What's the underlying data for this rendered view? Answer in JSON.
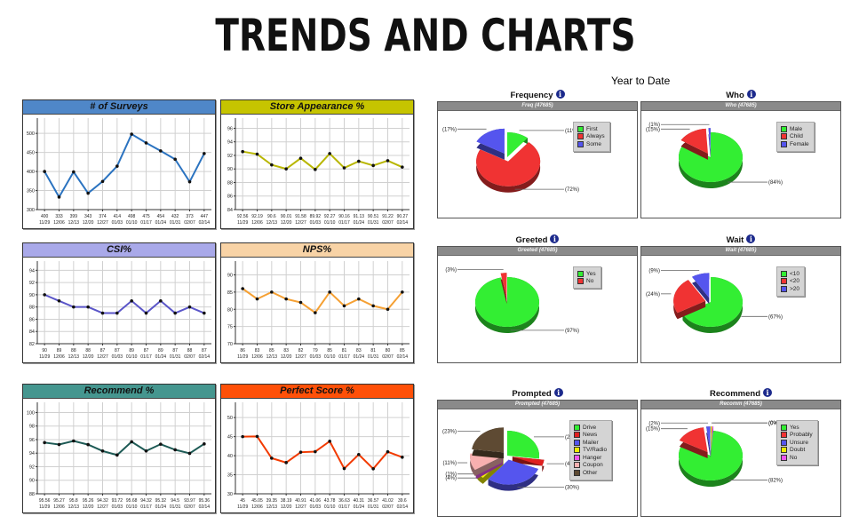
{
  "page": {
    "title": "TRENDS AND CHARTS",
    "ytd_label": "Year to Date"
  },
  "line_charts": [
    {
      "id": "surveys",
      "title": "# of Surveys",
      "header_color": "#4f87c8",
      "line_color": "#2b73c0",
      "yticks": [
        "300",
        "350",
        "400",
        "450",
        "500"
      ],
      "ymin": 300,
      "ymax": 540,
      "values": [
        400,
        333,
        399,
        343,
        374,
        414,
        498,
        475,
        454,
        432,
        373,
        447
      ],
      "value_labels": [
        "400",
        "333",
        "399",
        "343",
        "374",
        "414",
        "498",
        "475",
        "454",
        "432",
        "373",
        "447"
      ],
      "dates": [
        "11/29",
        "12/06",
        "12/13",
        "12/20",
        "12/27",
        "01/03",
        "01/10",
        "01/17",
        "01/24",
        "01/31",
        "02/07",
        "02/14"
      ]
    },
    {
      "id": "store",
      "title": "Store Appearance %",
      "header_color": "#c6c400",
      "line_color": "#b8b600",
      "yticks": [
        "84",
        "86",
        "88",
        "90",
        "92",
        "94",
        "96"
      ],
      "ymin": 84,
      "ymax": 97.5,
      "values": [
        92.56,
        92.19,
        90.6,
        90.01,
        91.58,
        89.92,
        92.27,
        90.16,
        91.13,
        90.51,
        91.22,
        90.27
      ],
      "value_labels": [
        "92.56",
        "92.19",
        "90.6",
        "90.01",
        "91.58",
        "89.92",
        "92.27",
        "90.16",
        "91.13",
        "90.51",
        "91.22",
        "90.27"
      ],
      "dates": [
        "11/29",
        "12/06",
        "12/13",
        "12/20",
        "12/27",
        "01/03",
        "01/10",
        "01/17",
        "01/24",
        "01/31",
        "02/07",
        "02/14"
      ]
    },
    {
      "id": "csi",
      "title": "CSI%",
      "header_color": "#a9a9e9",
      "line_color": "#5a55c8",
      "yticks": [
        "82",
        "84",
        "86",
        "88",
        "90",
        "92",
        "94"
      ],
      "ymin": 82,
      "ymax": 95.5,
      "values": [
        90,
        89,
        88,
        88,
        87,
        87,
        89,
        87,
        89,
        87,
        88,
        87
      ],
      "value_labels": [
        "90",
        "89",
        "88",
        "88",
        "87",
        "87",
        "89",
        "87",
        "89",
        "87",
        "88",
        "87"
      ],
      "dates": [
        "11/29",
        "12/06",
        "12/13",
        "12/20",
        "12/27",
        "01/03",
        "01/10",
        "01/17",
        "01/24",
        "01/31",
        "02/07",
        "02/14"
      ]
    },
    {
      "id": "nps",
      "title": "NPS%",
      "header_color": "#f8d3a6",
      "line_color": "#f5a033",
      "yticks": [
        "70",
        "75",
        "80",
        "85",
        "90"
      ],
      "ymin": 70,
      "ymax": 94,
      "values": [
        86,
        83,
        85,
        83,
        82,
        79,
        85,
        81,
        83,
        81,
        80,
        85
      ],
      "value_labels": [
        "86",
        "83",
        "85",
        "83",
        "82",
        "79",
        "85",
        "81",
        "83",
        "81",
        "80",
        "85"
      ],
      "dates": [
        "11/29",
        "12/06",
        "12/13",
        "12/20",
        "12/27",
        "01/03",
        "01/10",
        "01/17",
        "01/24",
        "01/31",
        "02/07",
        "02/14"
      ]
    },
    {
      "id": "recommend",
      "title": "Recommend %",
      "header_color": "#45968f",
      "line_color": "#1d5a55",
      "yticks": [
        "88",
        "90",
        "92",
        "94",
        "96",
        "98",
        "100"
      ],
      "ymin": 88,
      "ymax": 101.5,
      "values": [
        95.56,
        95.27,
        95.8,
        95.26,
        94.32,
        93.72,
        95.68,
        94.32,
        95.32,
        94.5,
        93.97,
        95.36
      ],
      "value_labels": [
        "95.56",
        "95.27",
        "95.8",
        "95.26",
        "94.32",
        "93.72",
        "95.68",
        "94.32",
        "95.32",
        "94.5",
        "93.97",
        "95.36"
      ],
      "dates": [
        "11/29",
        "12/06",
        "12/13",
        "12/20",
        "12/27",
        "01/03",
        "01/10",
        "01/17",
        "01/24",
        "01/31",
        "02/07",
        "02/14"
      ]
    },
    {
      "id": "perfect",
      "title": "Perfect Score %",
      "header_color": "#ff5008",
      "line_color": "#f23a00",
      "yticks": [
        "30",
        "35",
        "40",
        "45",
        "50"
      ],
      "ymin": 30,
      "ymax": 54,
      "values": [
        45,
        45.05,
        39.35,
        38.19,
        40.91,
        41.06,
        43.78,
        36.63,
        40.31,
        36.57,
        41.02,
        39.6
      ],
      "value_labels": [
        "45",
        "45.05",
        "39.35",
        "38.19",
        "40.91",
        "41.06",
        "43.78",
        "36.63",
        "40.31",
        "36.57",
        "41.02",
        "39.6"
      ],
      "dates": [
        "11/29",
        "12/06",
        "12/13",
        "12/20",
        "12/27",
        "01/03",
        "01/10",
        "01/17",
        "01/24",
        "01/31",
        "02/07",
        "02/14"
      ]
    }
  ],
  "pie_charts": [
    {
      "id": "frequency",
      "title": "Frequency",
      "subtitle": "Freq (47685)",
      "slices": [
        {
          "label": "First",
          "pct": 11,
          "pct_label": "(11%)",
          "color": "#33ee33"
        },
        {
          "label": "Always",
          "pct": 72,
          "pct_label": "(72%)",
          "color": "#f03333"
        },
        {
          "label": "Some",
          "pct": 17,
          "pct_label": "(17%)",
          "color": "#5555ee"
        }
      ]
    },
    {
      "id": "who",
      "title": "Who",
      "subtitle": "Who (47685)",
      "slices": [
        {
          "label": "Male",
          "pct": 84,
          "pct_label": "(84%)",
          "color": "#33ee33"
        },
        {
          "label": "Child",
          "pct": 15,
          "pct_label": "(15%)",
          "color": "#f03333"
        },
        {
          "label": "Female",
          "pct": 1,
          "pct_label": "(1%)",
          "color": "#5555ee"
        }
      ]
    },
    {
      "id": "greeted",
      "title": "Greeted",
      "subtitle": "Greeted (47685)",
      "slices": [
        {
          "label": "Yes",
          "pct": 97,
          "pct_label": "(97%)",
          "color": "#33ee33"
        },
        {
          "label": "No",
          "pct": 3,
          "pct_label": "(3%)",
          "color": "#f03333"
        }
      ]
    },
    {
      "id": "wait",
      "title": "Wait",
      "subtitle": "Wait (47685)",
      "slices": [
        {
          "label": "<10",
          "pct": 67,
          "pct_label": "(67%)",
          "color": "#33ee33"
        },
        {
          "label": "<20",
          "pct": 24,
          "pct_label": "(24%)",
          "color": "#f03333"
        },
        {
          "label": ">20",
          "pct": 9,
          "pct_label": "(9%)",
          "color": "#5555ee"
        }
      ]
    },
    {
      "id": "prompted",
      "title": "Prompted",
      "subtitle": "Prompted (47685)",
      "slices": [
        {
          "label": "Drive",
          "pct": 27,
          "pct_label": "(27%)",
          "color": "#33ee33"
        },
        {
          "label": "News",
          "pct": 4,
          "pct_label": "(4%)",
          "color": "#e02020"
        },
        {
          "label": "Mailer",
          "pct": 30,
          "pct_label": "(30%)",
          "color": "#5555ee"
        },
        {
          "label": "TV/Radio",
          "pct": 4,
          "pct_label": "(4%)",
          "color": "#eeee00"
        },
        {
          "label": "Hanger",
          "pct": 1,
          "pct_label": "(1%)",
          "color": "#ee55ee"
        },
        {
          "label": "Coupon",
          "pct": 11,
          "pct_label": "(11%)",
          "color": "#f8b0b0"
        },
        {
          "label": "Other",
          "pct": 23,
          "pct_label": "(23%)",
          "color": "#5e4a33"
        }
      ]
    },
    {
      "id": "recommend_pie",
      "title": "Recommend",
      "subtitle": "Recomm (47685)",
      "slices": [
        {
          "label": "Yes",
          "pct": 82,
          "pct_label": "(82%)",
          "color": "#33ee33"
        },
        {
          "label": "Probably",
          "pct": 15,
          "pct_label": "(15%)",
          "color": "#f03333"
        },
        {
          "label": "Unsure",
          "pct": 2,
          "pct_label": "(2%)",
          "color": "#5555ee"
        },
        {
          "label": "Doubt",
          "pct": 0,
          "pct_label": "(0%)",
          "color": "#eeee00"
        },
        {
          "label": "No",
          "pct": 0,
          "pct_label": "(0%)",
          "color": "#ee55ee"
        }
      ]
    }
  ],
  "chart_data": [
    {
      "type": "line",
      "title": "# of Surveys",
      "x": [
        "11/29",
        "12/06",
        "12/13",
        "12/20",
        "12/27",
        "01/03",
        "01/10",
        "01/17",
        "01/24",
        "01/31",
        "02/07",
        "02/14"
      ],
      "values": [
        400,
        333,
        399,
        343,
        374,
        414,
        498,
        475,
        454,
        432,
        373,
        447
      ],
      "ylim": [
        300,
        540
      ],
      "grid": true
    },
    {
      "type": "line",
      "title": "Store Appearance %",
      "x": [
        "11/29",
        "12/06",
        "12/13",
        "12/20",
        "12/27",
        "01/03",
        "01/10",
        "01/17",
        "01/24",
        "01/31",
        "02/07",
        "02/14"
      ],
      "values": [
        92.56,
        92.19,
        90.6,
        90.01,
        91.58,
        89.92,
        92.27,
        90.16,
        91.13,
        90.51,
        91.22,
        90.27
      ],
      "ylim": [
        84,
        97
      ],
      "grid": true
    },
    {
      "type": "line",
      "title": "CSI%",
      "x": [
        "11/29",
        "12/06",
        "12/13",
        "12/20",
        "12/27",
        "01/03",
        "01/10",
        "01/17",
        "01/24",
        "01/31",
        "02/07",
        "02/14"
      ],
      "values": [
        90,
        89,
        88,
        88,
        87,
        87,
        89,
        87,
        89,
        87,
        88,
        87
      ],
      "ylim": [
        82,
        95
      ],
      "grid": true
    },
    {
      "type": "line",
      "title": "NPS%",
      "x": [
        "11/29",
        "12/06",
        "12/13",
        "12/20",
        "12/27",
        "01/03",
        "01/10",
        "01/17",
        "01/24",
        "01/31",
        "02/07",
        "02/14"
      ],
      "values": [
        86,
        83,
        85,
        83,
        82,
        79,
        85,
        81,
        83,
        81,
        80,
        85
      ],
      "ylim": [
        70,
        94
      ],
      "grid": true
    },
    {
      "type": "line",
      "title": "Recommend %",
      "x": [
        "11/29",
        "12/06",
        "12/13",
        "12/20",
        "12/27",
        "01/03",
        "01/10",
        "01/17",
        "01/24",
        "01/31",
        "02/07",
        "02/14"
      ],
      "values": [
        95.56,
        95.27,
        95.8,
        95.26,
        94.32,
        93.72,
        95.68,
        94.32,
        95.32,
        94.5,
        93.97,
        95.36
      ],
      "ylim": [
        88,
        101
      ],
      "grid": true
    },
    {
      "type": "line",
      "title": "Perfect Score %",
      "x": [
        "11/29",
        "12/06",
        "12/13",
        "12/20",
        "12/27",
        "01/03",
        "01/10",
        "01/17",
        "01/24",
        "01/31",
        "02/07",
        "02/14"
      ],
      "values": [
        45,
        45.05,
        39.35,
        38.19,
        40.91,
        41.06,
        43.78,
        36.63,
        40.31,
        36.57,
        41.02,
        39.6
      ],
      "ylim": [
        30,
        54
      ],
      "grid": true
    },
    {
      "type": "pie",
      "title": "Frequency",
      "subtitle": "Freq (47685)",
      "categories": [
        "First",
        "Always",
        "Some"
      ],
      "values": [
        11,
        72,
        17
      ]
    },
    {
      "type": "pie",
      "title": "Who",
      "subtitle": "Who (47685)",
      "categories": [
        "Male",
        "Child",
        "Female"
      ],
      "values": [
        84,
        15,
        1
      ]
    },
    {
      "type": "pie",
      "title": "Greeted",
      "subtitle": "Greeted (47685)",
      "categories": [
        "Yes",
        "No"
      ],
      "values": [
        97,
        3
      ]
    },
    {
      "type": "pie",
      "title": "Wait",
      "subtitle": "Wait (47685)",
      "categories": [
        "<10",
        "<20",
        ">20"
      ],
      "values": [
        67,
        24,
        9
      ]
    },
    {
      "type": "pie",
      "title": "Prompted",
      "subtitle": "Prompted (47685)",
      "categories": [
        "Drive",
        "News",
        "Mailer",
        "TV/Radio",
        "Hanger",
        "Coupon",
        "Other"
      ],
      "values": [
        27,
        4,
        30,
        4,
        1,
        11,
        23
      ]
    },
    {
      "type": "pie",
      "title": "Recommend",
      "subtitle": "Recomm (47685)",
      "categories": [
        "Yes",
        "Probably",
        "Unsure",
        "Doubt",
        "No"
      ],
      "values": [
        82,
        15,
        2,
        0,
        0
      ]
    }
  ]
}
